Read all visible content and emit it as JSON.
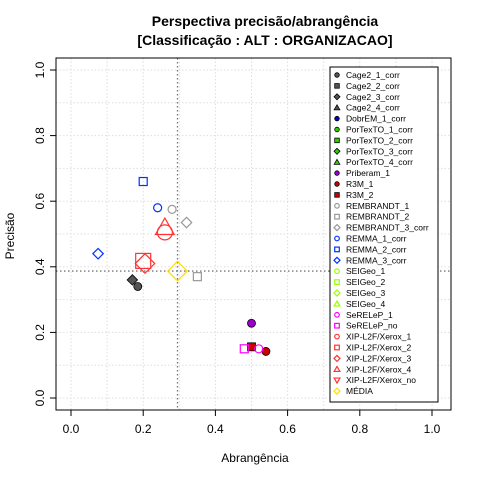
{
  "chart_data": {
    "type": "scatter",
    "title": [
      "Perspectiva precisão/abrangência",
      "[Classificação : ALT : ORGANIZACAO]"
    ],
    "xlabel": "Abrangência",
    "ylabel": "Precisão",
    "xlim": [
      0,
      1
    ],
    "ylim": [
      0,
      1
    ],
    "xticks": [
      0,
      0.2,
      0.4,
      0.6,
      0.8,
      1
    ],
    "yticks": [
      0,
      0.2,
      0.4,
      0.6,
      0.8,
      1
    ],
    "xtick_labels": [
      "0.0",
      "0.2",
      "0.4",
      "0.6",
      "0.8",
      "1.0"
    ],
    "ytick_labels": [
      "0.0",
      "0.2",
      "0.4",
      "0.6",
      "0.8",
      "1.0"
    ],
    "grid": true,
    "legend_position": "top-right",
    "reference_lines": {
      "x": 0.295,
      "y": 0.387
    },
    "series": [
      {
        "name": "Cage2_1_corr",
        "shape": "circle",
        "filled": true,
        "color": "#555555",
        "size": 1,
        "points": [
          [
            0.185,
            0.34
          ]
        ]
      },
      {
        "name": "Cage2_2_corr",
        "shape": "square",
        "filled": true,
        "color": "#555555",
        "size": 1,
        "points": []
      },
      {
        "name": "Cage2_3_corr",
        "shape": "diamond",
        "filled": true,
        "color": "#555555",
        "size": 1,
        "points": [
          [
            0.17,
            0.36
          ]
        ]
      },
      {
        "name": "Cage2_4_corr",
        "shape": "triangle",
        "filled": true,
        "color": "#555555",
        "size": 1,
        "points": []
      },
      {
        "name": "DobrEM_1_corr",
        "shape": "circle",
        "filled": true,
        "color": "#0000cc",
        "size": 1,
        "points": []
      },
      {
        "name": "PorTexTO_1_corr",
        "shape": "circle",
        "filled": true,
        "color": "#33cc00",
        "size": 1,
        "points": []
      },
      {
        "name": "PorTexTO_2_corr",
        "shape": "square",
        "filled": true,
        "color": "#33cc00",
        "size": 1,
        "points": []
      },
      {
        "name": "PorTexTO_3_corr",
        "shape": "diamond",
        "filled": true,
        "color": "#33cc00",
        "size": 1,
        "points": []
      },
      {
        "name": "PorTexTO_4_corr",
        "shape": "triangle",
        "filled": true,
        "color": "#33cc00",
        "size": 1,
        "points": []
      },
      {
        "name": "Priberam_1",
        "shape": "circle",
        "filled": true,
        "color": "#9900cc",
        "size": 1,
        "points": [
          [
            0.5,
            0.228
          ]
        ]
      },
      {
        "name": "R3M_1",
        "shape": "circle",
        "filled": true,
        "color": "#cc0000",
        "size": 1,
        "points": [
          [
            0.54,
            0.142
          ]
        ]
      },
      {
        "name": "R3M_2",
        "shape": "square",
        "filled": true,
        "color": "#cc0000",
        "size": 1,
        "points": [
          [
            0.5,
            0.156
          ]
        ]
      },
      {
        "name": "REMBRANDT_1",
        "shape": "circle",
        "filled": false,
        "color": "#999999",
        "size": 1,
        "points": [
          [
            0.28,
            0.575
          ]
        ]
      },
      {
        "name": "REMBRANDT_2",
        "shape": "square",
        "filled": false,
        "color": "#999999",
        "size": 1,
        "points": [
          [
            0.35,
            0.37
          ]
        ]
      },
      {
        "name": "REMBRANDT_3_corr",
        "shape": "diamond",
        "filled": false,
        "color": "#999999",
        "size": 1,
        "points": [
          [
            0.32,
            0.535
          ]
        ]
      },
      {
        "name": "REMMA_1_corr",
        "shape": "circle",
        "filled": false,
        "color": "#0033ff",
        "size": 1,
        "points": [
          [
            0.24,
            0.58
          ]
        ]
      },
      {
        "name": "REMMA_2_corr",
        "shape": "square",
        "filled": false,
        "color": "#0033ff",
        "size": 1,
        "points": [
          [
            0.2,
            0.66
          ]
        ]
      },
      {
        "name": "REMMA_3_corr",
        "shape": "diamond",
        "filled": false,
        "color": "#0033ff",
        "size": 1,
        "points": [
          [
            0.075,
            0.44
          ]
        ]
      },
      {
        "name": "SEIGeo_1",
        "shape": "circle",
        "filled": false,
        "color": "#99ff00",
        "size": 1,
        "points": []
      },
      {
        "name": "SEIGeo_2",
        "shape": "square",
        "filled": false,
        "color": "#99ff00",
        "size": 1,
        "points": []
      },
      {
        "name": "SEIGeo_3",
        "shape": "diamond",
        "filled": false,
        "color": "#99ff00",
        "size": 1,
        "points": []
      },
      {
        "name": "SEIGeo_4",
        "shape": "triangle",
        "filled": false,
        "color": "#99ff00",
        "size": 1,
        "points": []
      },
      {
        "name": "SeRELeP_1",
        "shape": "circle",
        "filled": false,
        "color": "#ff00ff",
        "size": 1,
        "points": [
          [
            0.52,
            0.15
          ]
        ]
      },
      {
        "name": "SeRELeP_no",
        "shape": "square",
        "filled": false,
        "color": "#ff00ff",
        "size": 1,
        "points": [
          [
            0.48,
            0.15
          ]
        ]
      },
      {
        "name": "XIP-L2F/Xerox_1",
        "shape": "circle",
        "filled": false,
        "color": "#ff3333",
        "size": 2,
        "points": [
          [
            0.26,
            0.505
          ]
        ]
      },
      {
        "name": "XIP-L2F/Xerox_2",
        "shape": "square",
        "filled": false,
        "color": "#ff3333",
        "size": 2,
        "points": [
          [
            0.2,
            0.418
          ]
        ]
      },
      {
        "name": "XIP-L2F/Xerox_3",
        "shape": "diamond",
        "filled": false,
        "color": "#ff3333",
        "size": 2,
        "points": [
          [
            0.205,
            0.41
          ]
        ]
      },
      {
        "name": "XIP-L2F/Xerox_4",
        "shape": "triangle",
        "filled": false,
        "color": "#ff3333",
        "size": 2,
        "points": [
          [
            0.26,
            0.52
          ]
        ]
      },
      {
        "name": "XIP-L2F/Xerox_no",
        "shape": "triangle-down",
        "filled": false,
        "color": "#ff3333",
        "size": 2,
        "points": []
      },
      {
        "name": "MÉDIA",
        "shape": "diamond",
        "filled": false,
        "color": "#ffdd00",
        "size": 2,
        "points": [
          [
            0.295,
            0.387
          ]
        ]
      }
    ]
  }
}
